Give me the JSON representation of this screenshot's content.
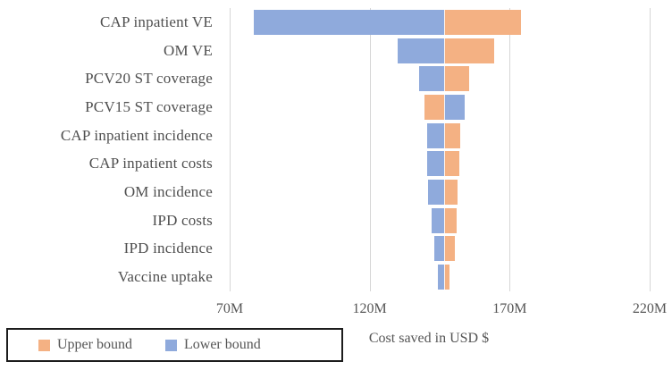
{
  "colors": {
    "upper_bound": "#F4B183",
    "lower_bound": "#8FAADC",
    "gridline": "#D6D6D6",
    "text": "#555555",
    "legend_border": "#1C1C1C"
  },
  "legend": {
    "items": [
      {
        "label": "Upper bound",
        "color_key": "upper_bound"
      },
      {
        "label": "Lower bound",
        "color_key": "lower_bound"
      }
    ]
  },
  "chart_data": {
    "type": "bar",
    "subtype": "tornado",
    "orientation": "horizontal",
    "title": "",
    "xlabel": "Cost saved in USD $",
    "unit": "M",
    "xlim": [
      70,
      220
    ],
    "x_ticks": [
      "70M",
      "120M",
      "170M",
      "220M"
    ],
    "x_tick_values": [
      70,
      120,
      170,
      220
    ],
    "base_value": 146.5,
    "grid": "vertical",
    "legend_position": "bottom-left",
    "categories": [
      "CAP inpatient VE",
      "OM VE",
      "PCV20 ST coverage",
      "PCV15 ST coverage",
      "CAP inpatient incidence",
      "CAP inpatient costs",
      "OM incidence",
      "IPD costs",
      "IPD incidence",
      "Vaccine uptake"
    ],
    "series": [
      {
        "name": "Upper bound",
        "values": [
          174,
          164.5,
          155.5,
          139.5,
          152.5,
          152,
          151.5,
          151,
          150.5,
          148.5
        ]
      },
      {
        "name": "Lower bound",
        "values": [
          78.5,
          130,
          137.5,
          154,
          140.5,
          140.5,
          141,
          142,
          143,
          144.5
        ]
      }
    ]
  }
}
